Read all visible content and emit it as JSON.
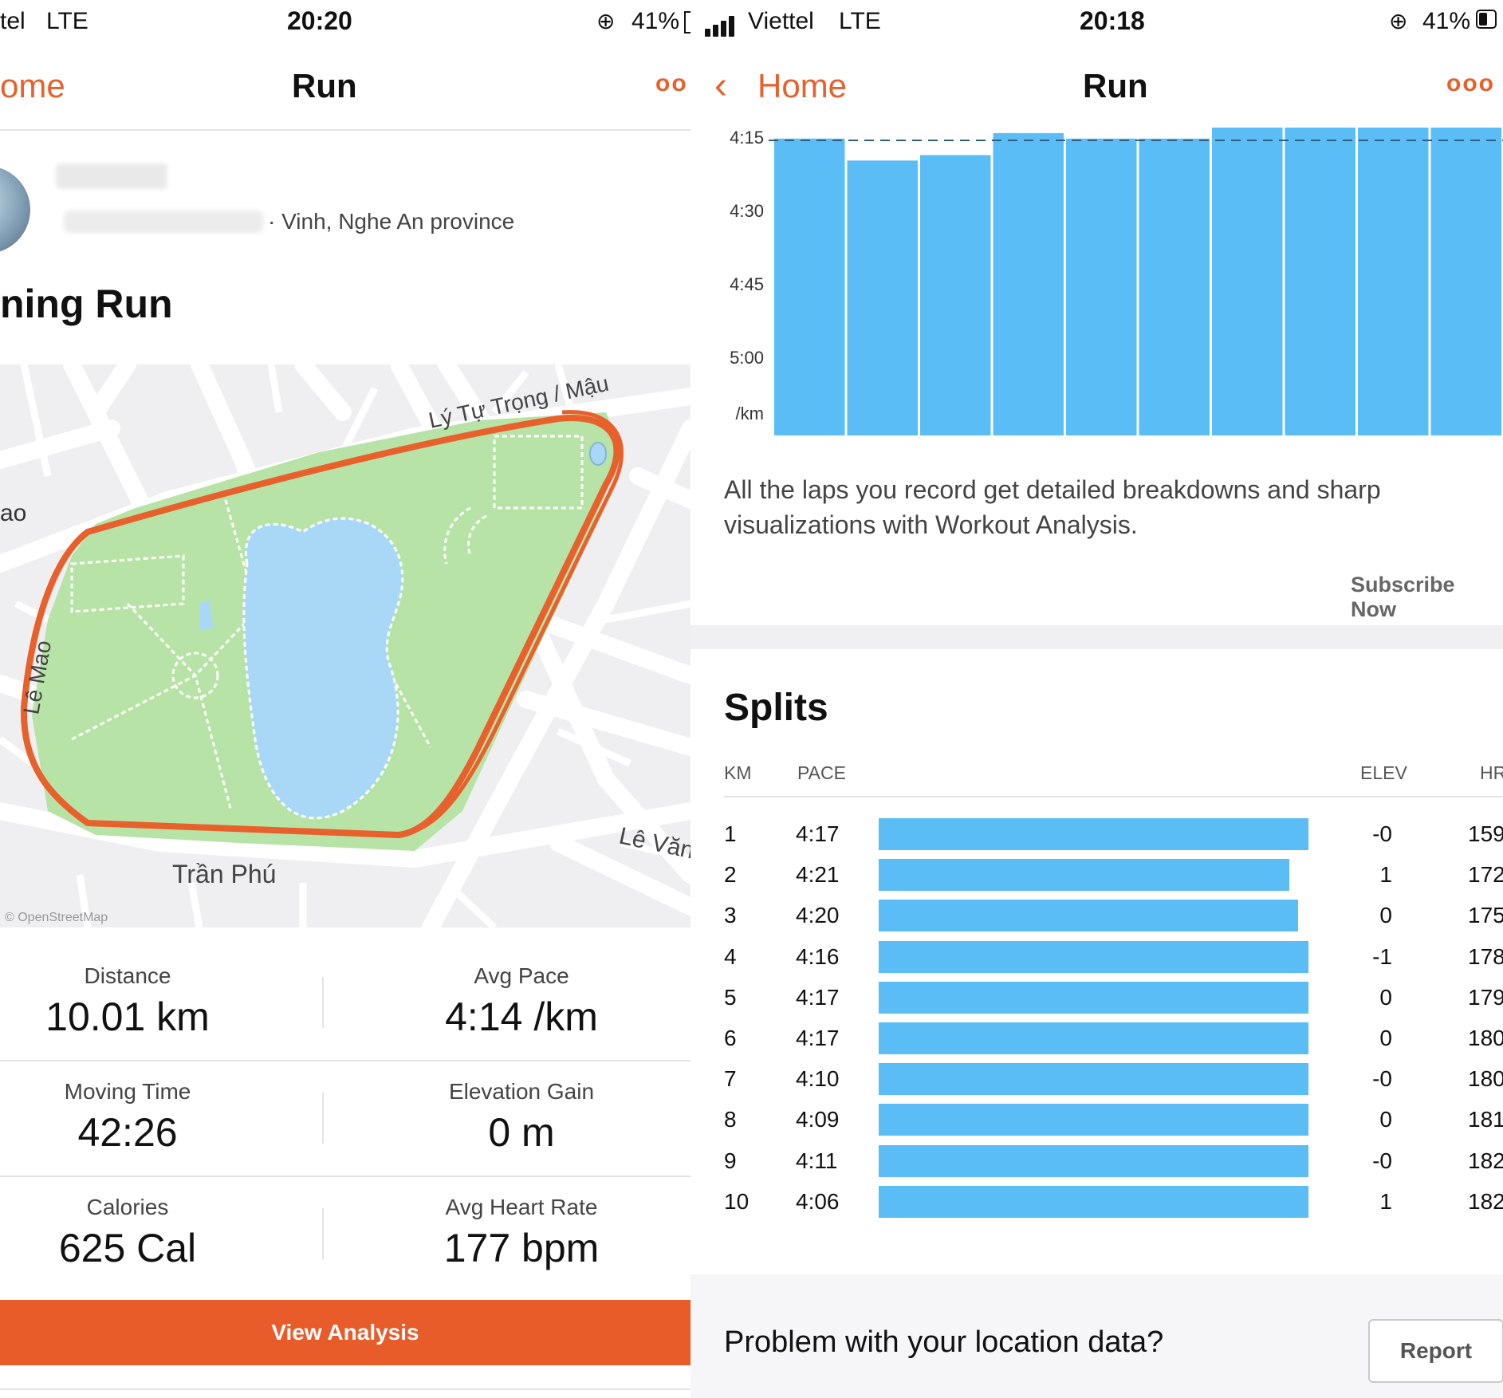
{
  "left": {
    "status": {
      "carrier": "tel",
      "network": "LTE",
      "time": "20:20",
      "battery": "41%"
    },
    "nav": {
      "back_label": "ome",
      "title": "Run",
      "more": "oo"
    },
    "profile": {
      "location": "· Vinh, Nghe An province"
    },
    "activity_title": "ning Run",
    "map": {
      "labels": {
        "street_top": "Lý Tự Trọng / Mậu",
        "street_left_a": "ao",
        "street_left_b": "Lê Mao",
        "street_right": "Lê Văn",
        "street_bottom": "Trần Phú",
        "credit": "© OpenStreetMap"
      },
      "colors": {
        "route": "#e8602c",
        "park": "#b7e3a6",
        "water": "#a9d8f7",
        "roads": "#ffffff",
        "background": "#efeff2"
      }
    },
    "stats": [
      {
        "label": "Distance",
        "value": "10.01 km"
      },
      {
        "label": "Avg Pace",
        "value": "4:14 /km"
      },
      {
        "label": "Moving Time",
        "value": "42:26"
      },
      {
        "label": "Elevation Gain",
        "value": "0 m"
      },
      {
        "label": "Calories",
        "value": "625 Cal"
      },
      {
        "label": "Avg Heart Rate",
        "value": "177 bpm"
      }
    ],
    "cta": "View Analysis"
  },
  "right": {
    "status": {
      "carrier": "Viettel",
      "network": "LTE",
      "time": "20:18",
      "battery": "41%"
    },
    "nav": {
      "back_label": "Home",
      "title": "Run",
      "more": "ooo"
    },
    "chart_data": {
      "type": "bar",
      "y_tick_labels": [
        "4:15",
        "4:30",
        "4:45",
        "5:00",
        "/km"
      ],
      "ylim_seconds_per_km": [
        255,
        311
      ],
      "reference_line": "4:15",
      "categories": [
        "1",
        "2",
        "3",
        "4",
        "5",
        "6",
        "7",
        "8",
        "9",
        "10"
      ],
      "values_seconds_per_km": [
        257,
        261,
        260,
        256,
        257,
        257,
        250,
        249,
        251,
        246
      ],
      "bar_color": "#5bbdf5"
    },
    "promo": "All the laps you record get detailed breakdowns and sharp visualizations with Workout Analysis.",
    "subscribe": "Subscribe Now",
    "splits": {
      "title": "Splits",
      "headers": {
        "km": "KM",
        "pace": "PACE",
        "elev": "ELEV",
        "hr": "HR"
      },
      "rows": [
        {
          "km": "1",
          "pace": "4:17",
          "pace_seconds": 257,
          "elev": "-0",
          "hr": "159"
        },
        {
          "km": "2",
          "pace": "4:21",
          "pace_seconds": 261,
          "elev": "1",
          "hr": "172"
        },
        {
          "km": "3",
          "pace": "4:20",
          "pace_seconds": 260,
          "elev": "0",
          "hr": "175"
        },
        {
          "km": "4",
          "pace": "4:16",
          "pace_seconds": 256,
          "elev": "-1",
          "hr": "178"
        },
        {
          "km": "5",
          "pace": "4:17",
          "pace_seconds": 257,
          "elev": "0",
          "hr": "179"
        },
        {
          "km": "6",
          "pace": "4:17",
          "pace_seconds": 257,
          "elev": "0",
          "hr": "180"
        },
        {
          "km": "7",
          "pace": "4:10",
          "pace_seconds": 250,
          "elev": "-0",
          "hr": "180"
        },
        {
          "km": "8",
          "pace": "4:09",
          "pace_seconds": 249,
          "elev": "0",
          "hr": "181"
        },
        {
          "km": "9",
          "pace": "4:11",
          "pace_seconds": 251,
          "elev": "-0",
          "hr": "182"
        },
        {
          "km": "10",
          "pace": "4:06",
          "pace_seconds": 246,
          "elev": "1",
          "hr": "182"
        }
      ]
    },
    "footer": {
      "problem": "Problem with your location data?",
      "report": "Report"
    }
  }
}
